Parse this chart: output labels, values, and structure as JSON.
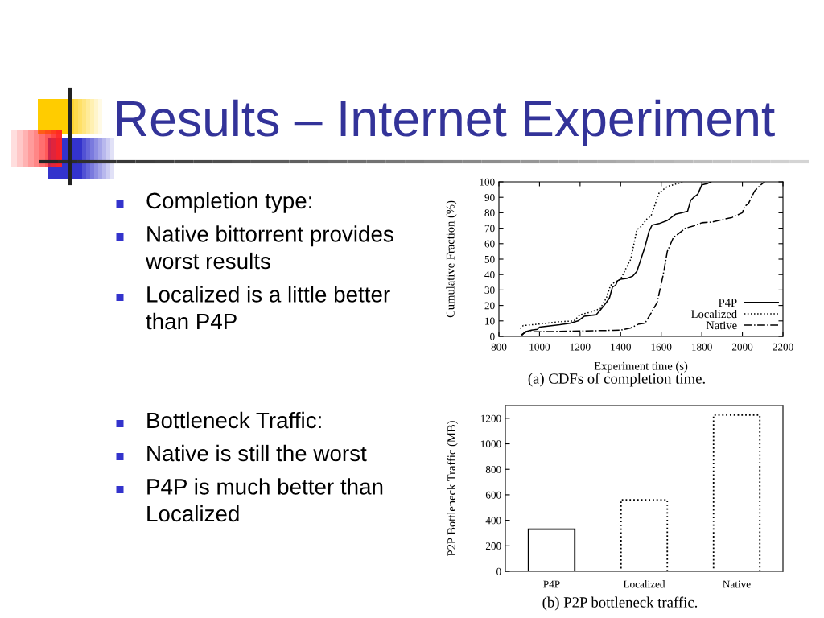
{
  "chart_data": [
    {
      "type": "other",
      "title": "Results – Internet Experiment",
      "annotations": [
        "Completion type:",
        "Native bittorrent provides worst results",
        "Localized is a little better than P4P"
      ]
    },
    {
      "type": "line",
      "xlabel": "Experiment time (s)",
      "ylabel": "Cumulative Fraction (%)",
      "annotations": [
        "(a) CDFs of completion time."
      ],
      "xlim": [
        800,
        2200
      ],
      "xticks": [
        800,
        1000,
        1200,
        1400,
        1600,
        1800,
        2000,
        2200
      ],
      "ylim": [
        0,
        100
      ],
      "yticks": [
        0,
        10,
        20,
        30,
        40,
        50,
        60,
        70,
        80,
        90,
        100
      ],
      "legend": "bottom right",
      "series": [
        {
          "name": "P4P",
          "color": "#000000",
          "line_style": "solid",
          "x": [
            915,
            930,
            960,
            990,
            1000,
            1100,
            1150,
            1190,
            1220,
            1280,
            1300,
            1330,
            1345,
            1360,
            1375,
            1385,
            1400,
            1430,
            1460,
            1480,
            1500,
            1520,
            1540,
            1555,
            1590,
            1630,
            1670,
            1700,
            1730,
            1745,
            1760,
            1780,
            1800,
            1830,
            1845
          ],
          "values": [
            1,
            3,
            4,
            4.5,
            6,
            7.5,
            8.5,
            10,
            13,
            14,
            17,
            22,
            25,
            32,
            33,
            36,
            37,
            37.5,
            39,
            42,
            50,
            58,
            68,
            72,
            73,
            75,
            79,
            80,
            81,
            88,
            90,
            92,
            98,
            99,
            100
          ]
        },
        {
          "name": "Localized",
          "color": "#000000",
          "line_style": "dotted",
          "x": [
            905,
            920,
            1000,
            1100,
            1170,
            1200,
            1260,
            1300,
            1330,
            1350,
            1370,
            1400,
            1430,
            1450,
            1480,
            1500,
            1530,
            1550,
            1590,
            1630,
            1710
          ],
          "values": [
            5,
            7,
            8,
            9.5,
            10,
            14,
            16,
            18,
            25,
            33,
            35,
            37,
            45,
            50,
            69,
            71,
            76,
            78,
            93,
            97,
            100
          ]
        },
        {
          "name": "Native",
          "color": "#000000",
          "line_style": "dashdot",
          "x": [
            910,
            935,
            1000,
            1200,
            1400,
            1450,
            1490,
            1520,
            1550,
            1580,
            1610,
            1630,
            1660,
            1680,
            1720,
            1760,
            1800,
            1850,
            1900,
            1950,
            2000,
            2010,
            2030,
            2060,
            2090,
            2110
          ],
          "values": [
            1,
            3,
            3,
            3.5,
            4,
            5.5,
            8,
            8.5,
            15,
            22,
            40,
            55,
            64,
            66,
            70,
            71.5,
            73.5,
            74,
            75.5,
            77,
            80,
            84,
            86,
            94,
            98,
            100
          ]
        }
      ]
    },
    {
      "type": "other",
      "annotations": [
        "Bottleneck Traffic:",
        "Native is still the worst",
        "P4P is much better than Localized"
      ]
    },
    {
      "type": "bar",
      "ylabel": "P2P Bottleneck Traffic (MB)",
      "annotations": [
        "(b) P2P bottleneck traffic."
      ],
      "categories": [
        "P4P",
        "Localized",
        "Native"
      ],
      "ylim": [
        0,
        1300
      ],
      "yticks": [
        0,
        200,
        400,
        600,
        800,
        1000,
        1200
      ],
      "series": [
        {
          "color": "#000000",
          "line_style": "solid",
          "values": [
            330,
            null,
            null
          ]
        },
        {
          "color": "#000000",
          "line_style": "dotted",
          "values": [
            null,
            560,
            null
          ]
        },
        {
          "color": "#000000",
          "line_style": "dotted",
          "values": [
            null,
            null,
            1225
          ]
        }
      ]
    }
  ]
}
